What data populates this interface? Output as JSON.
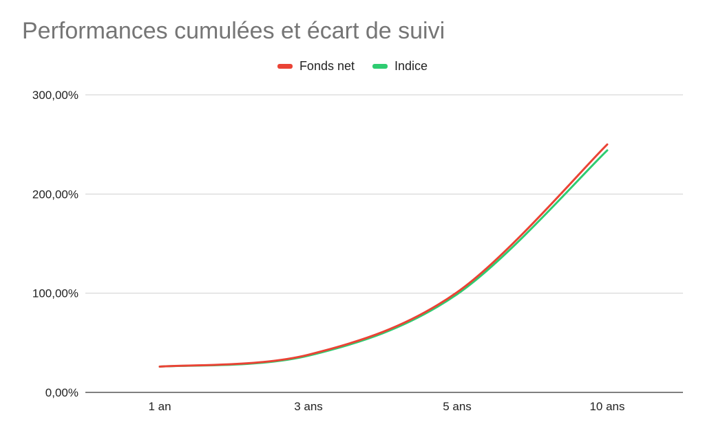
{
  "chart_data": {
    "type": "line",
    "title": "Performances cumulées et écart de suivi",
    "categories": [
      "1 an",
      "3 ans",
      "5 ans",
      "10 ans"
    ],
    "series": [
      {
        "name": "Fonds net",
        "values": [
          26,
          38,
          101,
          250
        ],
        "color": "#ea4335"
      },
      {
        "name": "Indice",
        "values": [
          26,
          37,
          99,
          244
        ],
        "color": "#2ecc71"
      }
    ],
    "y_ticks": [
      "0,00%",
      "100,00%",
      "200,00%",
      "300,00%"
    ],
    "y_tick_values": [
      0,
      100,
      200,
      300
    ],
    "ylim": [
      0,
      300
    ],
    "xlabel": "",
    "ylabel": "",
    "grid": true,
    "legend_position": "top"
  }
}
